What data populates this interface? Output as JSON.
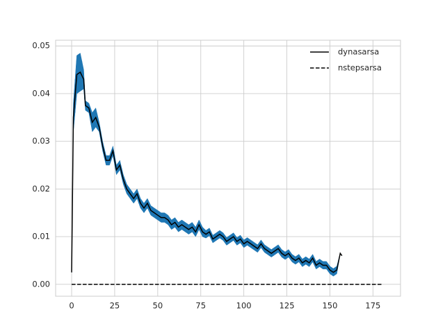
{
  "chart_data": {
    "type": "line",
    "x": [
      0,
      1,
      3,
      5,
      7,
      8,
      10,
      12,
      14,
      16,
      18,
      20,
      22,
      24,
      26,
      28,
      30,
      32,
      34,
      36,
      38,
      40,
      42,
      44,
      46,
      48,
      50,
      52,
      54,
      56,
      58,
      60,
      62,
      64,
      66,
      68,
      70,
      72,
      74,
      76,
      78,
      80,
      82,
      84,
      86,
      88,
      90,
      92,
      94,
      96,
      98,
      100,
      102,
      104,
      106,
      108,
      110,
      112,
      114,
      116,
      118,
      120,
      122,
      124,
      126,
      128,
      130,
      132,
      134,
      136,
      138,
      140,
      142,
      144,
      146,
      148,
      150,
      152,
      154,
      156,
      157
    ],
    "series": [
      {
        "name": "dynasarsa",
        "color": "#000000",
        "dash": false,
        "band_color": "#1f77b4",
        "values": [
          0.0025,
          0.035,
          0.044,
          0.0445,
          0.043,
          0.0375,
          0.037,
          0.034,
          0.035,
          0.033,
          0.029,
          0.026,
          0.026,
          0.028,
          0.024,
          0.025,
          0.022,
          0.02,
          0.019,
          0.018,
          0.019,
          0.017,
          0.016,
          0.017,
          0.0155,
          0.015,
          0.0145,
          0.014,
          0.014,
          0.0135,
          0.0125,
          0.013,
          0.012,
          0.0125,
          0.012,
          0.0115,
          0.012,
          0.011,
          0.0125,
          0.011,
          0.0105,
          0.011,
          0.0095,
          0.01,
          0.0105,
          0.01,
          0.009,
          0.0095,
          0.01,
          0.009,
          0.0095,
          0.0085,
          0.009,
          0.0085,
          0.008,
          0.0075,
          0.0085,
          0.0075,
          0.007,
          0.0065,
          0.007,
          0.0075,
          0.0065,
          0.006,
          0.0065,
          0.0055,
          0.005,
          0.0055,
          0.0045,
          0.005,
          0.0045,
          0.0055,
          0.004,
          0.0045,
          0.004,
          0.004,
          0.003,
          0.0025,
          0.003,
          0.0065,
          0.006
        ],
        "error": [
          0,
          0.003,
          0.004,
          0.004,
          0.002,
          0.001,
          0.001,
          0.002,
          0.002,
          0.001,
          0.001,
          0.001,
          0.001,
          0.001,
          0.001,
          0.001,
          0.001,
          0.001,
          0.001,
          0.001,
          0.001,
          0.001,
          0.001,
          0.001,
          0.001,
          0.001,
          0.001,
          0.001,
          0.001,
          0.001,
          0.001,
          0.001,
          0.001,
          0.001,
          0.001,
          0.001,
          0.001,
          0.001,
          0.001,
          0.001,
          0.0008,
          0.0008,
          0.0008,
          0.0008,
          0.0008,
          0.0008,
          0.0008,
          0.0008,
          0.0008,
          0.0008,
          0.0008,
          0.0008,
          0.0008,
          0.0008,
          0.0008,
          0.0008,
          0.0008,
          0.0008,
          0.0008,
          0.0008,
          0.0008,
          0.0008,
          0.0008,
          0.0008,
          0.0008,
          0.0008,
          0.0008,
          0.0008,
          0.0008,
          0.0008,
          0.0008,
          0.0008,
          0.0008,
          0.0008,
          0.0008,
          0.0008,
          0.0008,
          0.0008,
          0.0008,
          0,
          0
        ]
      },
      {
        "name": "nstepsarsa",
        "color": "#000000",
        "dash": true,
        "x": [
          0,
          180
        ],
        "values": [
          0,
          0
        ]
      }
    ],
    "xlim": [
      -9.3,
      191
    ],
    "ylim": [
      -0.0025,
      0.0512
    ],
    "xticks": [
      0,
      25,
      50,
      75,
      100,
      125,
      150,
      175
    ],
    "yticks": [
      {
        "value": 0,
        "label": "0.00"
      },
      {
        "value": 0.01,
        "label": "0.01"
      },
      {
        "value": 0.02,
        "label": "0.02"
      },
      {
        "value": 0.03,
        "label": "0.03"
      },
      {
        "value": 0.04,
        "label": "0.04"
      },
      {
        "value": 0.05,
        "label": "0.05"
      }
    ],
    "grid": true,
    "legend": "upper right"
  }
}
